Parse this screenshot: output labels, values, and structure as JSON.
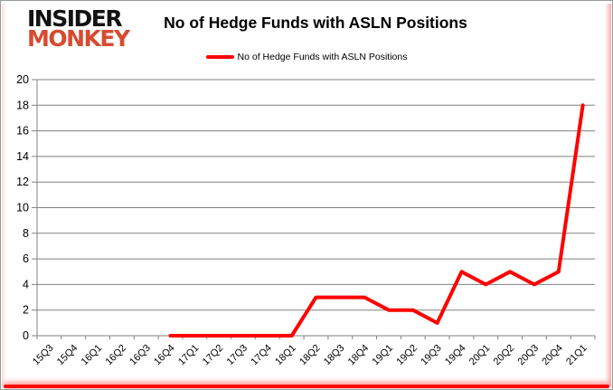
{
  "logo": {
    "line1": "INSIDER",
    "line2": "MONKEY"
  },
  "header": {
    "title": "No of Hedge Funds with ASLN Positions"
  },
  "legend": {
    "label": "No of Hedge Funds with ASLN Positions"
  },
  "colors": {
    "series_red": "#ff0000",
    "grid_gray": "#808080",
    "text_black": "#000000",
    "logo_red": "#d74b32",
    "border_gray": "#9a9a9a"
  },
  "chart_data": {
    "type": "line",
    "title": "No of Hedge Funds with ASLN Positions",
    "xlabel": "",
    "ylabel": "",
    "categories": [
      "15Q3",
      "15Q4",
      "16Q1",
      "16Q2",
      "16Q3",
      "16Q4",
      "17Q1",
      "17Q2",
      "17Q3",
      "17Q4",
      "18Q1",
      "18Q2",
      "18Q3",
      "18Q4",
      "19Q1",
      "19Q2",
      "19Q3",
      "19Q4",
      "20Q1",
      "20Q2",
      "20Q3",
      "20Q4",
      "21Q1"
    ],
    "series": [
      {
        "name": "No of Hedge Funds with ASLN Positions",
        "color": "#ff0000",
        "values": [
          null,
          null,
          null,
          null,
          null,
          0,
          0,
          0,
          0,
          0,
          0,
          3,
          3,
          3,
          2,
          2,
          1,
          5,
          4,
          5,
          4,
          5,
          18
        ]
      }
    ],
    "ylim": [
      0,
      20
    ],
    "ytick_step": 2,
    "grid": true,
    "legend_position": "top-center"
  }
}
